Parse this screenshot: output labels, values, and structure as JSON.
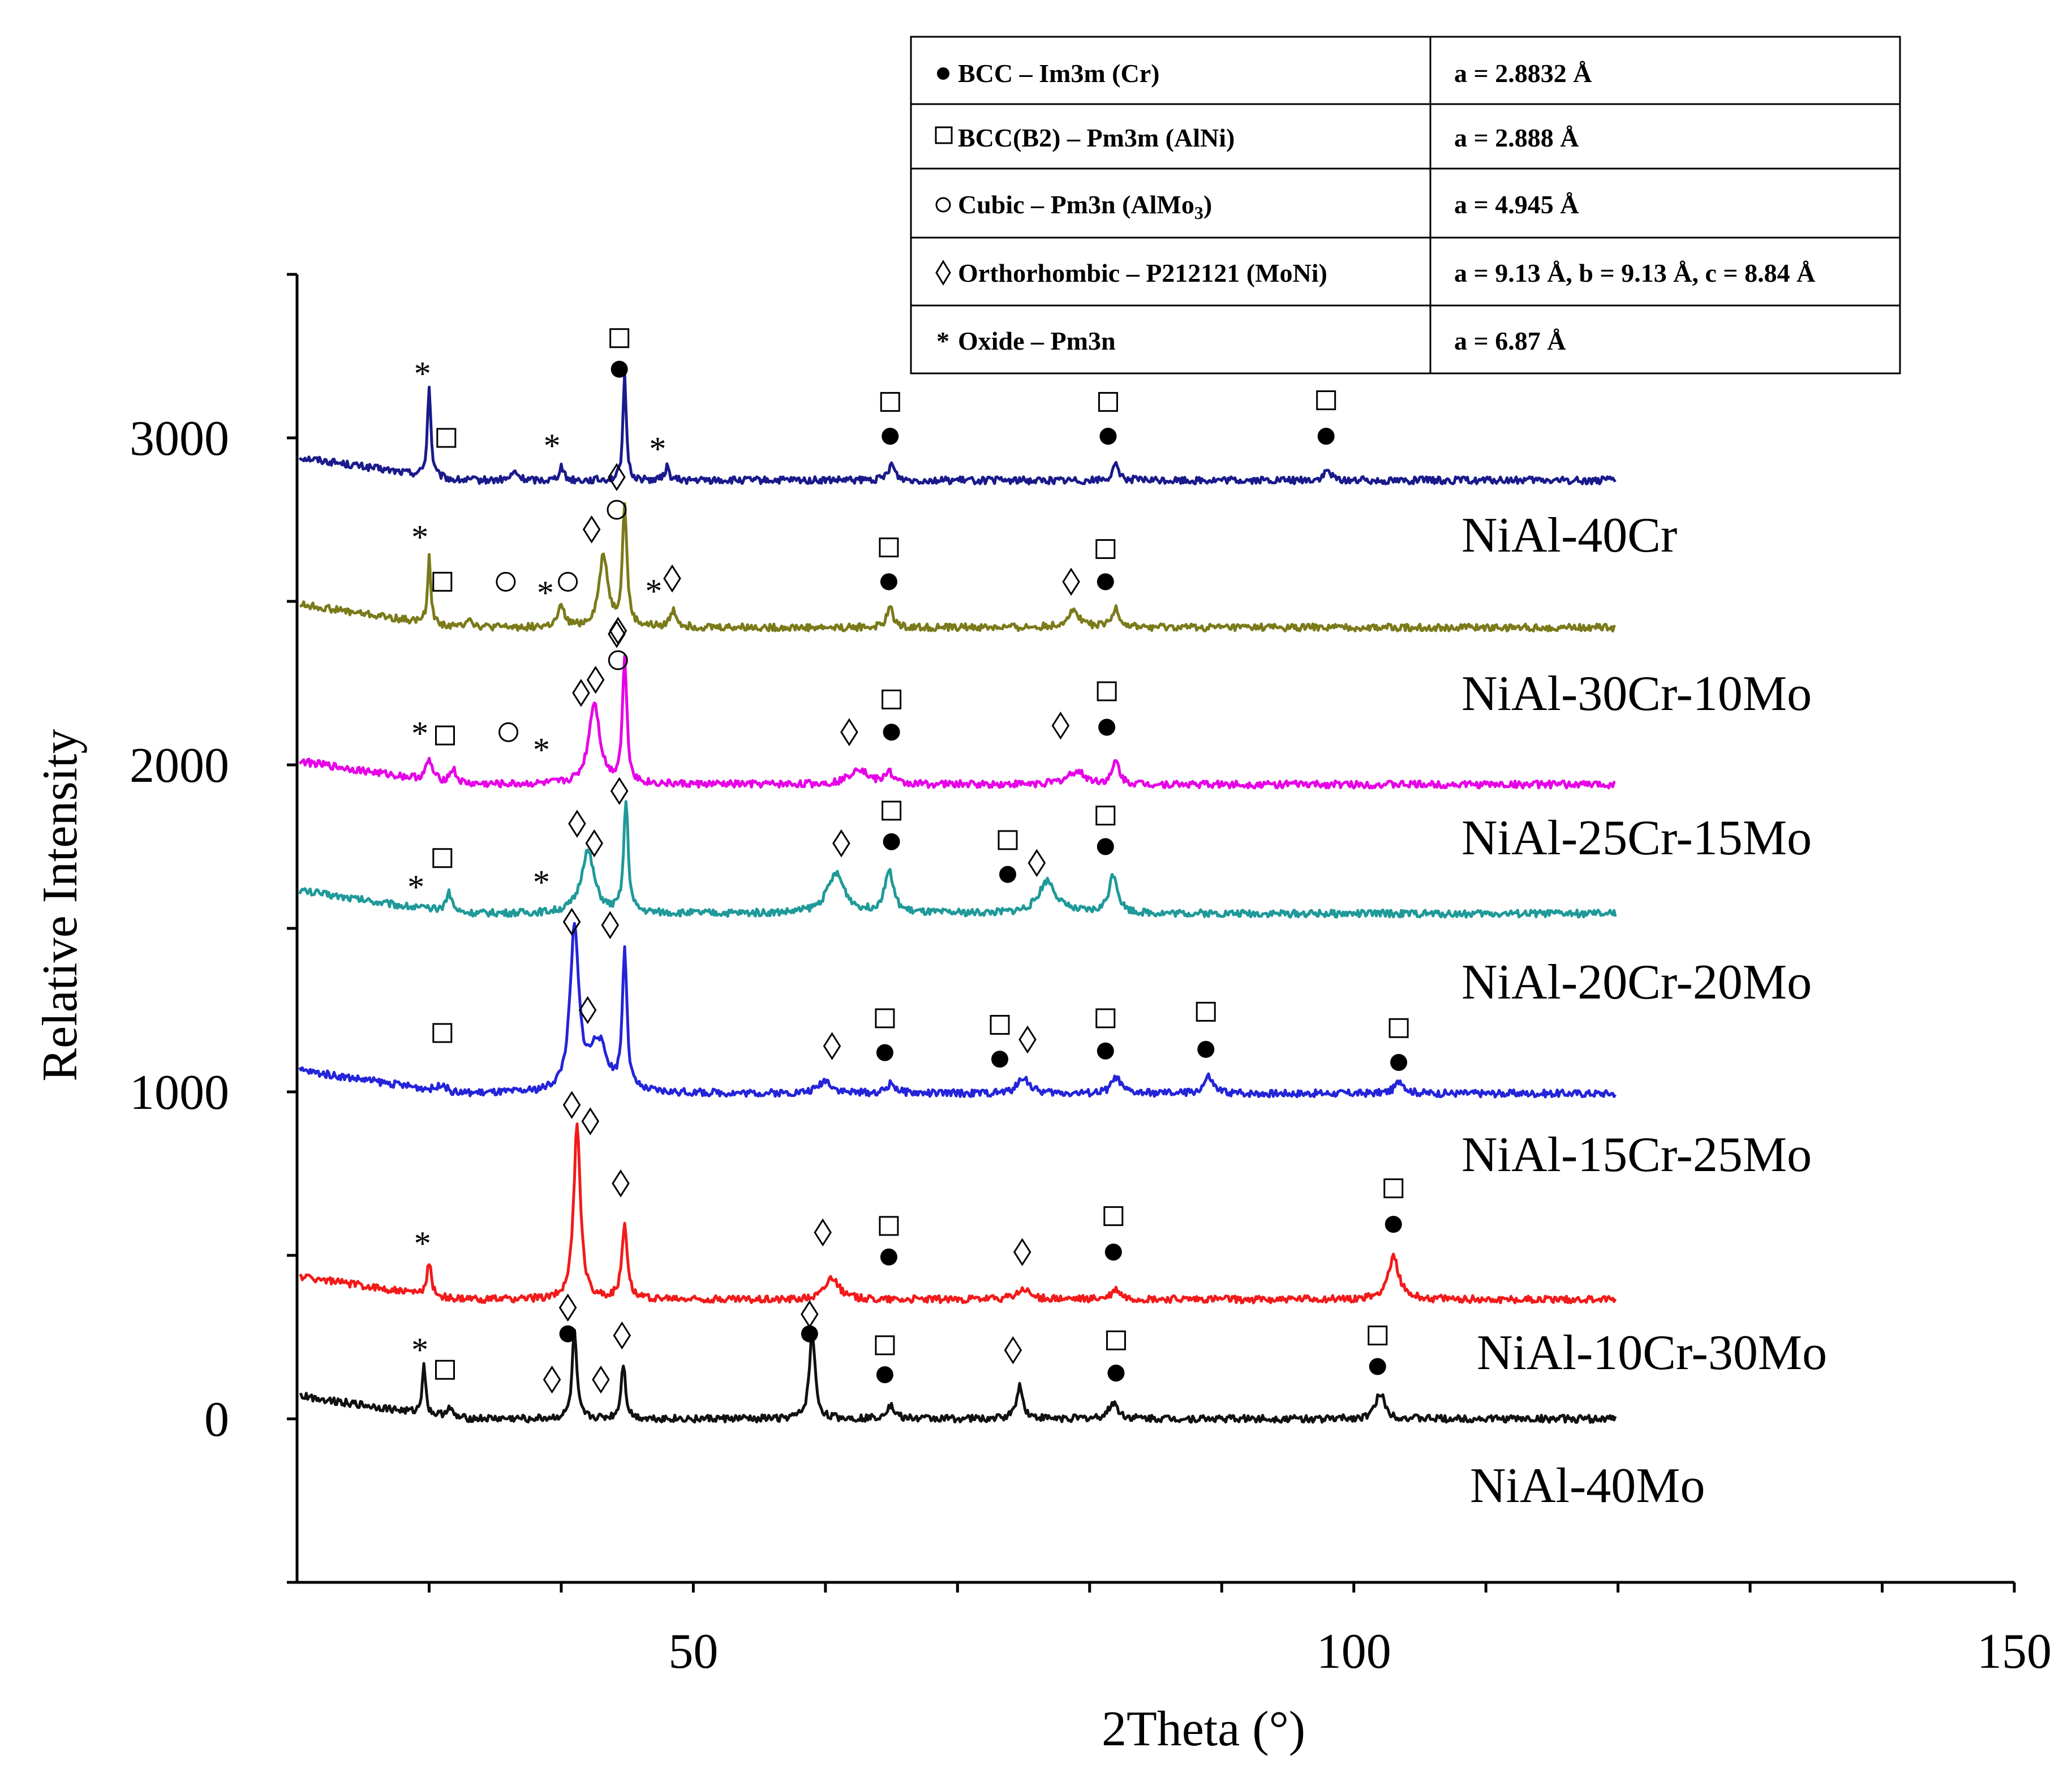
{
  "chart_data": {
    "type": "line",
    "title": "",
    "xlabel": "2Theta (°)",
    "ylabel": "Relative Intensity",
    "xlim": [
      20,
      150
    ],
    "ylim": [
      -500,
      3500
    ],
    "x_ticks": [
      50,
      100,
      150
    ],
    "y_ticks": [
      0,
      1000,
      2000,
      3000
    ],
    "x_tick_labels": [
      "50",
      "100",
      "150"
    ],
    "y_tick_labels": [
      "0",
      "1000",
      "2000",
      "3000"
    ],
    "grid": false,
    "legend_table": [
      {
        "symbol": "filled-circle",
        "phase": "BCC – Im3m (Cr)",
        "lattice": "a = 2.8832 Å"
      },
      {
        "symbol": "square",
        "phase": "BCC(B2) – Pm3m (AlNi)",
        "lattice": "a = 2.888 Å"
      },
      {
        "symbol": "open-circle",
        "phase": "Cubic – Pm3n (AlMo",
        "phase_sub": "3",
        "phase_end": ")",
        "lattice": "a = 4.945 Å"
      },
      {
        "symbol": "diamond",
        "phase": "Orthorhombic – P212121 (MoNi)",
        "lattice": "a = 9.13 Å, b = 9.13 Å, c = 8.84 Å"
      },
      {
        "symbol": "star",
        "phase": "Oxide – Pm3n",
        "lattice": "a = 6.87 Å"
      }
    ],
    "series": [
      {
        "name": "NiAl-40Cr",
        "color": "#1a1a8c",
        "baseline": 2870,
        "peaks": [
          [
            30,
            280,
            0.15
          ],
          [
            36.5,
            25,
            0.3
          ],
          [
            40,
            45,
            0.2
          ],
          [
            44.8,
            320,
            0.15
          ],
          [
            48,
            40,
            0.2
          ],
          [
            65,
            50,
            0.3
          ],
          [
            82,
            45,
            0.3
          ],
          [
            98,
            30,
            0.3
          ]
        ],
        "markers": [
          {
            "sym": "star",
            "x": 29.5,
            "y": 3210
          },
          {
            "sym": "square",
            "x": 31.3,
            "y": 3000
          },
          {
            "sym": "star",
            "x": 39.3,
            "y": 2990
          },
          {
            "sym": "square",
            "x": 44.4,
            "y": 3305
          },
          {
            "sym": "filled-circle",
            "x": 44.4,
            "y": 3210
          },
          {
            "sym": "star",
            "x": 47.3,
            "y": 2980
          },
          {
            "sym": "square",
            "x": 64.9,
            "y": 3110
          },
          {
            "sym": "filled-circle",
            "x": 64.9,
            "y": 3005
          },
          {
            "sym": "square",
            "x": 81.4,
            "y": 3110
          },
          {
            "sym": "filled-circle",
            "x": 81.4,
            "y": 3005
          },
          {
            "sym": "square",
            "x": 97.9,
            "y": 3115
          },
          {
            "sym": "filled-circle",
            "x": 97.9,
            "y": 3005
          }
        ]
      },
      {
        "name": "NiAl-30Cr-10Mo",
        "color": "#7a7a1a",
        "baseline": 2420,
        "peaks": [
          [
            30,
            200,
            0.15
          ],
          [
            33,
            30,
            0.3
          ],
          [
            40,
            60,
            0.3
          ],
          [
            43.2,
            220,
            0.4
          ],
          [
            44.8,
            370,
            0.2
          ],
          [
            48.5,
            50,
            0.3
          ],
          [
            64.9,
            60,
            0.3
          ],
          [
            78.8,
            50,
            0.6
          ],
          [
            82,
            60,
            0.3
          ]
        ],
        "markers": [
          {
            "sym": "star",
            "x": 29.3,
            "y": 2710
          },
          {
            "sym": "square",
            "x": 31,
            "y": 2560
          },
          {
            "sym": "open-circle",
            "x": 35.8,
            "y": 2560
          },
          {
            "sym": "star",
            "x": 38.8,
            "y": 2540
          },
          {
            "sym": "open-circle",
            "x": 40.5,
            "y": 2560
          },
          {
            "sym": "diamond",
            "x": 42.3,
            "y": 2720
          },
          {
            "sym": "open-circle",
            "x": 44.2,
            "y": 2780
          },
          {
            "sym": "diamond",
            "x": 44.2,
            "y": 2880
          },
          {
            "sym": "diamond",
            "x": 44.2,
            "y": 2400
          },
          {
            "sym": "star",
            "x": 47,
            "y": 2545
          },
          {
            "sym": "diamond",
            "x": 48.4,
            "y": 2570
          },
          {
            "sym": "square",
            "x": 64.8,
            "y": 2665
          },
          {
            "sym": "filled-circle",
            "x": 64.8,
            "y": 2560
          },
          {
            "sym": "diamond",
            "x": 78.6,
            "y": 2560
          },
          {
            "sym": "square",
            "x": 81.2,
            "y": 2660
          },
          {
            "sym": "filled-circle",
            "x": 81.2,
            "y": 2560
          }
        ]
      },
      {
        "name": "NiAl-25Cr-15Mo",
        "color": "#e600e6",
        "baseline": 1940,
        "peaks": [
          [
            30,
            60,
            0.3
          ],
          [
            31.8,
            45,
            0.3
          ],
          [
            42.5,
            250,
            0.5
          ],
          [
            44.8,
            380,
            0.2
          ],
          [
            62.5,
            50,
            0.8
          ],
          [
            64.8,
            40,
            0.3
          ],
          [
            79,
            40,
            0.8
          ],
          [
            82,
            70,
            0.3
          ]
        ],
        "markers": [
          {
            "sym": "star",
            "x": 29.3,
            "y": 2110
          },
          {
            "sym": "square",
            "x": 31.2,
            "y": 2090
          },
          {
            "sym": "open-circle",
            "x": 36,
            "y": 2100
          },
          {
            "sym": "star",
            "x": 38.5,
            "y": 2060
          },
          {
            "sym": "diamond",
            "x": 41.5,
            "y": 2220
          },
          {
            "sym": "diamond",
            "x": 42.6,
            "y": 2260
          },
          {
            "sym": "diamond",
            "x": 44.3,
            "y": 2410
          },
          {
            "sym": "open-circle",
            "x": 44.3,
            "y": 2320
          },
          {
            "sym": "diamond",
            "x": 61.8,
            "y": 2100
          },
          {
            "sym": "square",
            "x": 65,
            "y": 2200
          },
          {
            "sym": "filled-circle",
            "x": 65,
            "y": 2100
          },
          {
            "sym": "diamond",
            "x": 77.8,
            "y": 2120
          },
          {
            "sym": "square",
            "x": 81.3,
            "y": 2225
          },
          {
            "sym": "filled-circle",
            "x": 81.3,
            "y": 2115
          }
        ]
      },
      {
        "name": "NiAl-20Cr-20Mo",
        "color": "#1f9999",
        "baseline": 1545,
        "peaks": [
          [
            31.5,
            60,
            0.3
          ],
          [
            42,
            190,
            0.6
          ],
          [
            44.9,
            340,
            0.2
          ],
          [
            60.8,
            120,
            0.8
          ],
          [
            64.8,
            130,
            0.4
          ],
          [
            76.8,
            100,
            0.8
          ],
          [
            81.8,
            120,
            0.4
          ]
        ],
        "markers": [
          {
            "sym": "star",
            "x": 29,
            "y": 1640
          },
          {
            "sym": "square",
            "x": 31,
            "y": 1715
          },
          {
            "sym": "star",
            "x": 38.5,
            "y": 1655
          },
          {
            "sym": "diamond",
            "x": 41.2,
            "y": 1820
          },
          {
            "sym": "diamond",
            "x": 42.5,
            "y": 1760
          },
          {
            "sym": "diamond",
            "x": 44.4,
            "y": 1920
          },
          {
            "sym": "diamond",
            "x": 61.2,
            "y": 1760
          },
          {
            "sym": "square",
            "x": 65,
            "y": 1860
          },
          {
            "sym": "filled-circle",
            "x": 65,
            "y": 1765
          },
          {
            "sym": "square",
            "x": 73.8,
            "y": 1770
          },
          {
            "sym": "filled-circle",
            "x": 73.8,
            "y": 1665
          },
          {
            "sym": "diamond",
            "x": 76,
            "y": 1700
          },
          {
            "sym": "square",
            "x": 81.2,
            "y": 1845
          },
          {
            "sym": "filled-circle",
            "x": 81.2,
            "y": 1750
          }
        ]
      },
      {
        "name": "NiAl-15Cr-25Mo",
        "color": "#2424d9",
        "baseline": 995,
        "peaks": [
          [
            31,
            25,
            0.3
          ],
          [
            41,
            490,
            0.4
          ],
          [
            42.8,
            150,
            0.8
          ],
          [
            44.8,
            430,
            0.2
          ],
          [
            60,
            40,
            0.6
          ],
          [
            65,
            30,
            0.4
          ],
          [
            75,
            50,
            0.5
          ],
          [
            82,
            50,
            0.4
          ],
          [
            89,
            50,
            0.4
          ],
          [
            103.5,
            40,
            0.4
          ]
        ],
        "markers": [
          {
            "sym": "diamond",
            "x": 40.8,
            "y": 1520
          },
          {
            "sym": "diamond",
            "x": 43.7,
            "y": 1510
          },
          {
            "sym": "square",
            "x": 31,
            "y": 1180
          },
          {
            "sym": "diamond",
            "x": 42,
            "y": 1250
          },
          {
            "sym": "diamond",
            "x": 60.5,
            "y": 1140
          },
          {
            "sym": "square",
            "x": 64.5,
            "y": 1225
          },
          {
            "sym": "filled-circle",
            "x": 64.5,
            "y": 1120
          },
          {
            "sym": "square",
            "x": 73.2,
            "y": 1205
          },
          {
            "sym": "filled-circle",
            "x": 73.2,
            "y": 1100
          },
          {
            "sym": "diamond",
            "x": 75.3,
            "y": 1160
          },
          {
            "sym": "square",
            "x": 81.2,
            "y": 1225
          },
          {
            "sym": "filled-circle",
            "x": 81.2,
            "y": 1125
          },
          {
            "sym": "square",
            "x": 88.8,
            "y": 1245
          },
          {
            "sym": "filled-circle",
            "x": 88.8,
            "y": 1130
          },
          {
            "sym": "square",
            "x": 103.4,
            "y": 1195
          },
          {
            "sym": "filled-circle",
            "x": 103.4,
            "y": 1090
          }
        ]
      },
      {
        "name": "NiAl-10Cr-30Mo",
        "color": "#f21a1a",
        "baseline": 365,
        "peaks": [
          [
            30,
            100,
            0.2
          ],
          [
            41.2,
            540,
            0.3
          ],
          [
            44.8,
            230,
            0.25
          ],
          [
            60.5,
            70,
            0.6
          ],
          [
            75,
            30,
            0.6
          ],
          [
            82,
            30,
            0.4
          ],
          [
            103,
            130,
            0.5
          ]
        ],
        "markers": [
          {
            "sym": "star",
            "x": 29.5,
            "y": 550
          },
          {
            "sym": "diamond",
            "x": 40.8,
            "y": 960
          },
          {
            "sym": "diamond",
            "x": 42.2,
            "y": 910
          },
          {
            "sym": "diamond",
            "x": 44.5,
            "y": 720
          },
          {
            "sym": "diamond",
            "x": 59.8,
            "y": 570
          },
          {
            "sym": "square",
            "x": 64.8,
            "y": 590
          },
          {
            "sym": "filled-circle",
            "x": 64.8,
            "y": 495
          },
          {
            "sym": "diamond",
            "x": 74.9,
            "y": 510
          },
          {
            "sym": "square",
            "x": 81.8,
            "y": 620
          },
          {
            "sym": "filled-circle",
            "x": 81.8,
            "y": 510
          },
          {
            "sym": "square",
            "x": 103,
            "y": 705
          },
          {
            "sym": "filled-circle",
            "x": 103,
            "y": 595
          }
        ]
      },
      {
        "name": "NiAl-40Mo",
        "color": "#111111",
        "baseline": 0,
        "peaks": [
          [
            29.6,
            160,
            0.15
          ],
          [
            31.5,
            30,
            0.3
          ],
          [
            41,
            270,
            0.2
          ],
          [
            44.7,
            170,
            0.2
          ],
          [
            59,
            270,
            0.25
          ],
          [
            64.9,
            40,
            0.4
          ],
          [
            74.7,
            100,
            0.3
          ],
          [
            81.8,
            50,
            0.4
          ],
          [
            102,
            80,
            0.4
          ]
        ],
        "markers": [
          {
            "sym": "star",
            "x": 29.3,
            "y": 225
          },
          {
            "sym": "square",
            "x": 31.2,
            "y": 150
          },
          {
            "sym": "diamond",
            "x": 39.3,
            "y": 120
          },
          {
            "sym": "filled-circle",
            "x": 40.5,
            "y": 260
          },
          {
            "sym": "diamond",
            "x": 40.5,
            "y": 340
          },
          {
            "sym": "diamond",
            "x": 43,
            "y": 120
          },
          {
            "sym": "diamond",
            "x": 44.6,
            "y": 255
          },
          {
            "sym": "filled-circle",
            "x": 58.8,
            "y": 260
          },
          {
            "sym": "diamond",
            "x": 58.8,
            "y": 320
          },
          {
            "sym": "square",
            "x": 64.5,
            "y": 225
          },
          {
            "sym": "filled-circle",
            "x": 64.5,
            "y": 135
          },
          {
            "sym": "diamond",
            "x": 74.2,
            "y": 210
          },
          {
            "sym": "square",
            "x": 82,
            "y": 240
          },
          {
            "sym": "filled-circle",
            "x": 82,
            "y": 140
          },
          {
            "sym": "square",
            "x": 101.8,
            "y": 255
          },
          {
            "sym": "filled-circle",
            "x": 101.8,
            "y": 160
          }
        ]
      }
    ]
  }
}
